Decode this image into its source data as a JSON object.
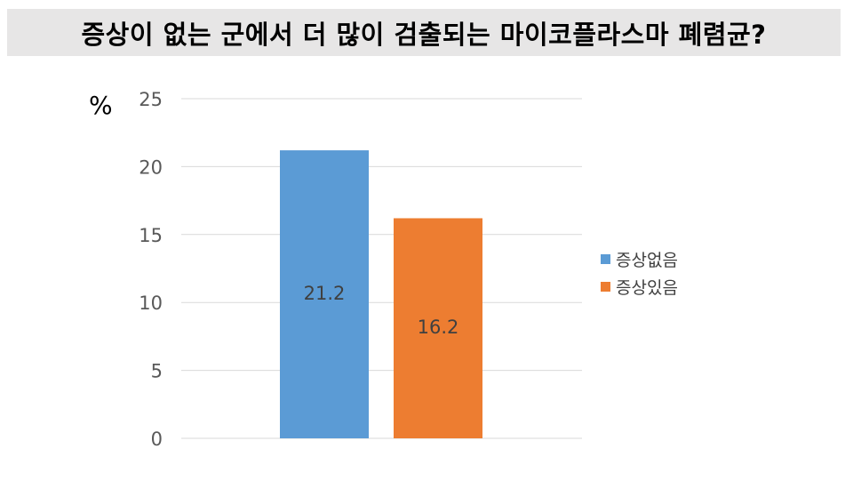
{
  "title": "증상이 없는 군에서 더 많이 검출되는 마이코플라스마 폐렴균?",
  "unit_label": "%",
  "chart_data": {
    "type": "bar",
    "ylim": [
      0,
      25
    ],
    "yticks": [
      "0",
      "5",
      "10",
      "15",
      "20",
      "25"
    ],
    "grid": true,
    "legend_position": "right",
    "series": [
      {
        "name": "증상없음",
        "value": 21.2,
        "label": "21.2",
        "color": "#5b9bd5"
      },
      {
        "name": "증상있음",
        "value": 16.2,
        "label": "16.2",
        "color": "#ed7d31"
      }
    ]
  }
}
